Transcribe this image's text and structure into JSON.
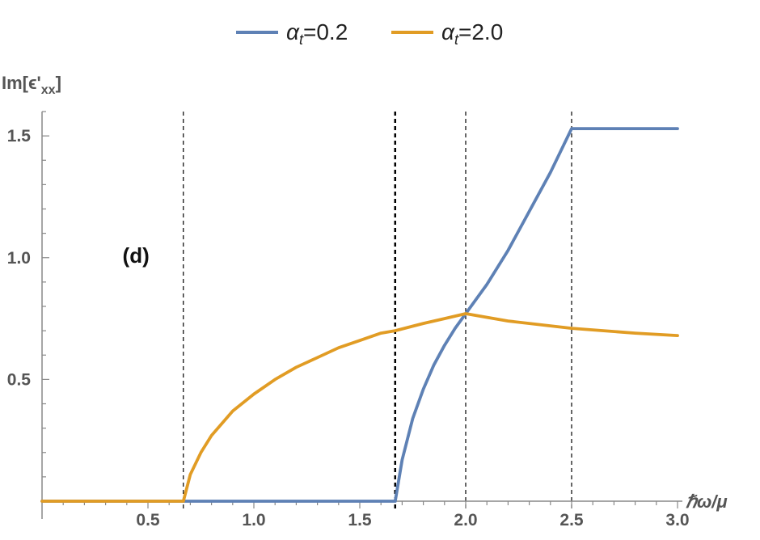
{
  "chart_data": {
    "type": "line",
    "panel_label": "(d)",
    "xlabel": "ℏω/μ",
    "ylabel_main": "Im[ϵ'",
    "ylabel_sub": "xx",
    "ylabel_close": "]",
    "xlim": [
      0,
      3.0
    ],
    "ylim": [
      0,
      1.6
    ],
    "x_ticks": [
      0.5,
      1.0,
      1.5,
      2.0,
      2.5,
      3.0
    ],
    "x_tick_labels": [
      "0.5",
      "1.0",
      "1.5",
      "2.0",
      "2.5",
      "3.0"
    ],
    "y_ticks": [
      0.5,
      1.0,
      1.5
    ],
    "y_tick_labels": [
      "0.5",
      "1.0",
      "1.5"
    ],
    "vlines": [
      0.667,
      1.667,
      2.0,
      2.5
    ],
    "legend_position": "top-center",
    "series": [
      {
        "name_prefix": "α",
        "name_sub": "t",
        "name_suffix": "=0.2",
        "color": "#5E81B5",
        "x": [
          0,
          1.667,
          1.7,
          1.75,
          1.8,
          1.85,
          1.9,
          1.95,
          2.0,
          2.1,
          2.2,
          2.3,
          2.4,
          2.5,
          3.0
        ],
        "y": [
          0,
          0,
          0.17,
          0.34,
          0.46,
          0.56,
          0.64,
          0.71,
          0.77,
          0.89,
          1.03,
          1.19,
          1.35,
          1.53,
          1.53
        ]
      },
      {
        "name_prefix": "α",
        "name_sub": "t",
        "name_suffix": "=2.0",
        "color": "#E19C24",
        "x": [
          0,
          0.667,
          0.7,
          0.75,
          0.8,
          0.9,
          1.0,
          1.1,
          1.2,
          1.3,
          1.4,
          1.5,
          1.6,
          1.667,
          1.8,
          1.9,
          2.0,
          2.2,
          2.5,
          2.8,
          3.0
        ],
        "y": [
          0,
          0,
          0.11,
          0.2,
          0.27,
          0.37,
          0.44,
          0.5,
          0.55,
          0.59,
          0.63,
          0.66,
          0.69,
          0.7,
          0.73,
          0.75,
          0.77,
          0.74,
          0.71,
          0.69,
          0.68
        ]
      }
    ]
  }
}
